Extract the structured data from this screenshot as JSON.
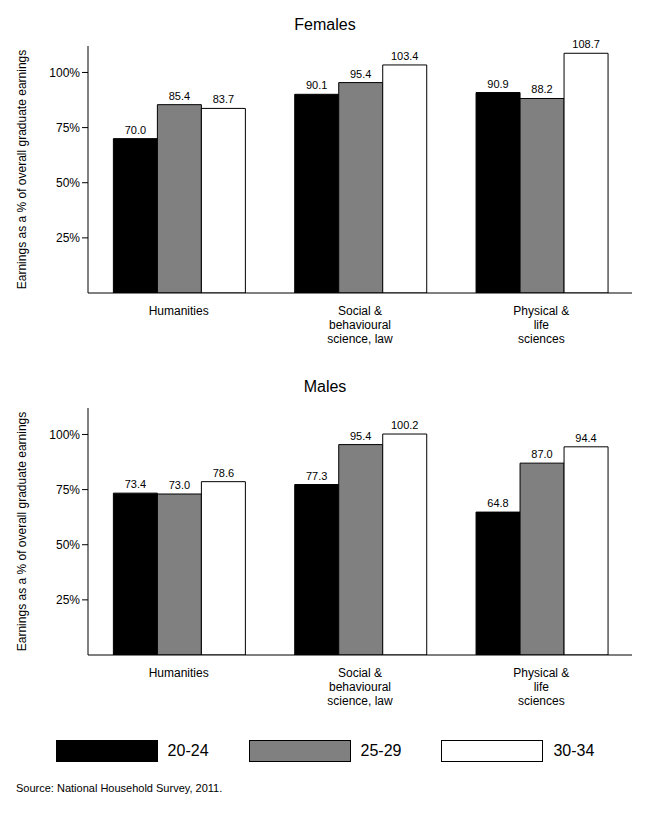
{
  "chart_data": [
    {
      "type": "bar",
      "title": "Females",
      "ylabel": "Earnings as a % of overall graduate earnings",
      "categories": [
        "Humanities",
        "Social & behavioural science, law",
        "Physical & life sciences"
      ],
      "series": [
        {
          "name": "20-24",
          "color": "#000000",
          "values": [
            70.0,
            90.1,
            90.9
          ],
          "value_labels": [
            "70.0",
            "90.1",
            "90.9"
          ]
        },
        {
          "name": "25-29",
          "color": "#808080",
          "values": [
            85.4,
            95.4,
            88.2
          ],
          "value_labels": [
            "85.4",
            "95.4",
            "88.2"
          ]
        },
        {
          "name": "30-34",
          "color": "#ffffff",
          "values": [
            83.7,
            103.4,
            108.7
          ],
          "value_labels": [
            "83.7",
            "103.4",
            "108.7"
          ]
        }
      ],
      "ylim": [
        0,
        112
      ],
      "yticks": [
        {
          "value": 25,
          "label": "25%"
        },
        {
          "value": 50,
          "label": "50%"
        },
        {
          "value": 75,
          "label": "75%"
        },
        {
          "value": 100,
          "label": "100%"
        }
      ],
      "data_labels": true
    },
    {
      "type": "bar",
      "title": "Males",
      "ylabel": "Earnings as a % of overall graduate earnings",
      "categories": [
        "Humanities",
        "Social & behavioural science, law",
        "Physical & life sciences"
      ],
      "series": [
        {
          "name": "20-24",
          "color": "#000000",
          "values": [
            73.4,
            77.3,
            64.8
          ],
          "value_labels": [
            "73.4",
            "77.3",
            "64.8"
          ]
        },
        {
          "name": "25-29",
          "color": "#808080",
          "values": [
            73.0,
            95.4,
            87.0
          ],
          "value_labels": [
            "73.0",
            "95.4",
            "87.0"
          ]
        },
        {
          "name": "30-34",
          "color": "#ffffff",
          "values": [
            78.6,
            100.2,
            94.4
          ],
          "value_labels": [
            "78.6",
            "100.2",
            "94.4"
          ]
        }
      ],
      "ylim": [
        0,
        112
      ],
      "yticks": [
        {
          "value": 25,
          "label": "25%"
        },
        {
          "value": 50,
          "label": "50%"
        },
        {
          "value": 75,
          "label": "75%"
        },
        {
          "value": 100,
          "label": "100%"
        }
      ],
      "data_labels": true,
      "legend": "bottom",
      "annotations": [
        "Source: National Household Survey, 2011."
      ]
    }
  ]
}
